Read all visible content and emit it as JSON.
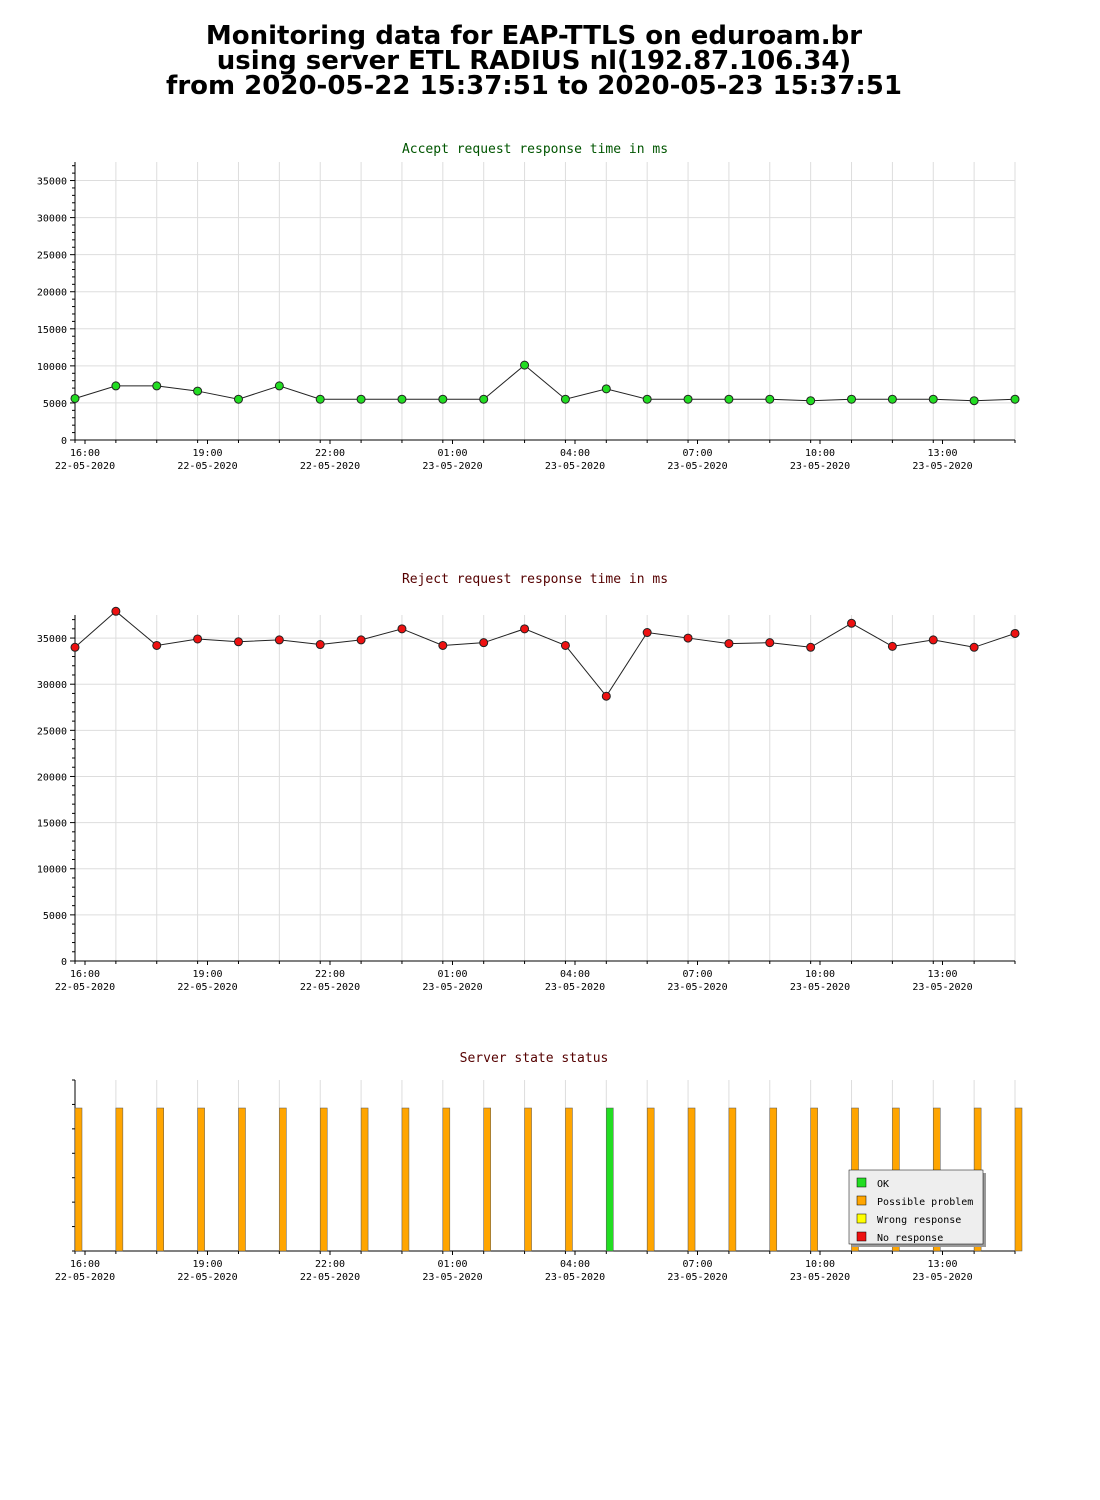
{
  "header": {
    "line1": "Monitoring data for EAP-TTLS on eduroam.br",
    "line2": "using server ETL RADIUS nl(192.87.106.34)",
    "line3": "from 2020-05-22 15:37:51 to 2020-05-23 15:37:51"
  },
  "colors": {
    "ok": "#22dd22",
    "possible_problem": "#ffa500",
    "wrong_response": "#ffff00",
    "no_response": "#ee1111",
    "accept_title": "#005500",
    "reject_title": "#550000",
    "grid": "#dddddd"
  },
  "chart_data": [
    {
      "type": "line",
      "title": "Accept request response time in ms",
      "ylim": [
        0,
        37500
      ],
      "yticks": [
        "0",
        "5000",
        "10000",
        "15000",
        "20000",
        "25000",
        "30000",
        "35000"
      ],
      "xticks": [
        {
          "time": "16:00",
          "date": "22-05-2020"
        },
        {
          "time": "19:00",
          "date": "22-05-2020"
        },
        {
          "time": "22:00",
          "date": "22-05-2020"
        },
        {
          "time": "01:00",
          "date": "23-05-2020"
        },
        {
          "time": "04:00",
          "date": "23-05-2020"
        },
        {
          "time": "07:00",
          "date": "23-05-2020"
        },
        {
          "time": "10:00",
          "date": "23-05-2020"
        },
        {
          "time": "13:00",
          "date": "23-05-2020"
        }
      ],
      "grid": true,
      "series": [
        {
          "color": "#22dd22",
          "values": [
            5600,
            7300,
            7300,
            6600,
            5500,
            7300,
            5500,
            5500,
            5500,
            5500,
            5500,
            10100,
            5500,
            6900,
            5500,
            5500,
            5500,
            5500,
            5300,
            5500,
            5500,
            5500,
            5300,
            5500
          ]
        }
      ]
    },
    {
      "type": "line",
      "title": "Reject request response time in ms",
      "ylim": [
        0,
        37500
      ],
      "yticks": [
        "0",
        "5000",
        "10000",
        "15000",
        "20000",
        "25000",
        "30000",
        "35000"
      ],
      "xticks": [
        {
          "time": "16:00",
          "date": "22-05-2020"
        },
        {
          "time": "19:00",
          "date": "22-05-2020"
        },
        {
          "time": "22:00",
          "date": "22-05-2020"
        },
        {
          "time": "01:00",
          "date": "23-05-2020"
        },
        {
          "time": "04:00",
          "date": "23-05-2020"
        },
        {
          "time": "07:00",
          "date": "23-05-2020"
        },
        {
          "time": "10:00",
          "date": "23-05-2020"
        },
        {
          "time": "13:00",
          "date": "23-05-2020"
        }
      ],
      "grid": true,
      "series": [
        {
          "color": "#ee1111",
          "values": [
            34000,
            37900,
            34200,
            34900,
            34600,
            34800,
            34300,
            34800,
            36000,
            34200,
            34500,
            36000,
            34200,
            28700,
            35600,
            35000,
            34400,
            34500,
            34000,
            36600,
            34100,
            34800,
            34000,
            35500
          ]
        }
      ]
    },
    {
      "type": "bar",
      "title": "Server state status",
      "xticks": [
        {
          "time": "16:00",
          "date": "22-05-2020"
        },
        {
          "time": "19:00",
          "date": "22-05-2020"
        },
        {
          "time": "22:00",
          "date": "22-05-2020"
        },
        {
          "time": "01:00",
          "date": "23-05-2020"
        },
        {
          "time": "04:00",
          "date": "23-05-2020"
        },
        {
          "time": "07:00",
          "date": "23-05-2020"
        },
        {
          "time": "10:00",
          "date": "23-05-2020"
        },
        {
          "time": "13:00",
          "date": "23-05-2020"
        }
      ],
      "states": [
        "possible_problem",
        "possible_problem",
        "possible_problem",
        "possible_problem",
        "possible_problem",
        "possible_problem",
        "possible_problem",
        "possible_problem",
        "possible_problem",
        "possible_problem",
        "possible_problem",
        "possible_problem",
        "possible_problem",
        "ok",
        "possible_problem",
        "possible_problem",
        "possible_problem",
        "possible_problem",
        "possible_problem",
        "possible_problem",
        "possible_problem",
        "possible_problem",
        "possible_problem",
        "possible_problem"
      ],
      "legend_position": "bottom-right",
      "legend": [
        {
          "key": "ok",
          "label": "OK"
        },
        {
          "key": "possible_problem",
          "label": "Possible problem"
        },
        {
          "key": "wrong_response",
          "label": "Wrong response"
        },
        {
          "key": "no_response",
          "label": "No response"
        }
      ]
    }
  ]
}
